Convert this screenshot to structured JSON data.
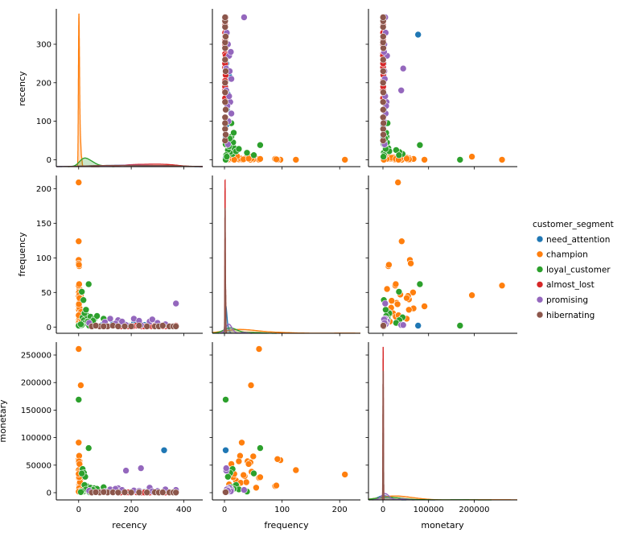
{
  "chart_data": {
    "type": "scatter",
    "kind": "pairplot",
    "diag_kind": "kde",
    "variables": [
      "recency",
      "frequency",
      "monetary"
    ],
    "hue": "customer_segment",
    "legend": {
      "title": "customer_segment",
      "placement": "right"
    },
    "axes": {
      "recency": {
        "xlim": [
          -85,
          472
        ],
        "ylim": [
          -18,
          392
        ],
        "x_ticks": [
          0,
          200,
          400
        ],
        "y_ticks": [
          0,
          100,
          200,
          300
        ]
      },
      "frequency": {
        "xlim": [
          -21,
          236
        ],
        "ylim": [
          -9,
          219
        ],
        "x_ticks": [
          0,
          100,
          200
        ],
        "y_ticks": [
          0,
          50,
          100,
          150,
          200
        ]
      },
      "monetary": {
        "xlim": [
          -31750,
          294500
        ],
        "ylim": [
          -13160,
          273400
        ],
        "x_ticks": [
          0,
          100000,
          200000
        ],
        "y_ticks": [
          0,
          50000,
          100000,
          150000,
          200000,
          250000
        ]
      }
    },
    "grid": false,
    "point_fields": [
      "recency",
      "frequency",
      "monetary"
    ],
    "segments": [
      {
        "name": "need_attention",
        "color": "#1f77b4",
        "points": [
          [
            325,
            2,
            77000
          ],
          [
            210,
            5,
            2000
          ],
          [
            5,
            2,
            1500
          ],
          [
            90,
            3,
            1200
          ],
          [
            130,
            4,
            2500
          ],
          [
            60,
            2,
            900
          ],
          [
            170,
            6,
            3000
          ],
          [
            250,
            3,
            1800
          ],
          [
            110,
            1,
            600
          ],
          [
            40,
            2,
            800
          ],
          [
            190,
            2,
            1100
          ],
          [
            300,
            4,
            2200
          ],
          [
            218,
            8,
            1400
          ],
          [
            150,
            3,
            700
          ]
        ]
      },
      {
        "name": "champion",
        "color": "#ff7f0e",
        "points": [
          [
            0,
            209,
            33000
          ],
          [
            0,
            124,
            41000
          ],
          [
            8,
            46,
            195000
          ],
          [
            0,
            60,
            261000
          ],
          [
            0,
            30,
            91000
          ],
          [
            0,
            97,
            59000
          ],
          [
            0,
            92,
            61000
          ],
          [
            2,
            88,
            12000
          ],
          [
            1,
            90,
            13000
          ],
          [
            3,
            55,
            9000
          ],
          [
            1,
            50,
            66000
          ],
          [
            2,
            27,
            67000
          ],
          [
            4,
            40,
            57000
          ],
          [
            0,
            45,
            55000
          ],
          [
            5,
            12,
            52000
          ],
          [
            1,
            25,
            57000
          ],
          [
            3,
            47,
            38000
          ],
          [
            2,
            35,
            30000
          ],
          [
            6,
            20,
            22000
          ],
          [
            1,
            15,
            28000
          ],
          [
            0,
            60,
            27000
          ],
          [
            2,
            8,
            15000
          ],
          [
            4,
            18,
            10000
          ],
          [
            3,
            28,
            18000
          ],
          [
            7,
            5,
            6000
          ],
          [
            1,
            10,
            4000
          ],
          [
            0,
            6,
            3000
          ],
          [
            9,
            22,
            12000
          ],
          [
            5,
            38,
            19000
          ],
          [
            2,
            14,
            8000
          ],
          [
            0,
            3,
            2000
          ],
          [
            12,
            9,
            5000
          ],
          [
            1,
            33,
            32000
          ],
          [
            3,
            42,
            52000
          ],
          [
            2,
            62,
            28000
          ],
          [
            0,
            17,
            34000
          ]
        ]
      },
      {
        "name": "loyal_customer",
        "color": "#2ca02c",
        "points": [
          [
            0,
            2,
            169000
          ],
          [
            38,
            62,
            81000
          ],
          [
            15,
            14,
            43000
          ],
          [
            20,
            10,
            36000
          ],
          [
            25,
            6,
            29000
          ],
          [
            12,
            51,
            35000
          ],
          [
            18,
            39,
            2000
          ],
          [
            30,
            17,
            12000
          ],
          [
            45,
            15,
            9000
          ],
          [
            60,
            12,
            8000
          ],
          [
            95,
            12,
            10000
          ],
          [
            22,
            20,
            14000
          ],
          [
            35,
            8,
            4000
          ],
          [
            50,
            5,
            3000
          ],
          [
            28,
            25,
            6000
          ],
          [
            12,
            3,
            2500
          ],
          [
            70,
            16,
            7000
          ],
          [
            40,
            2,
            1500
          ],
          [
            8,
            4,
            1000
          ],
          [
            55,
            9,
            5000
          ]
        ]
      },
      {
        "name": "almost_lost",
        "color": "#d62728",
        "points": [
          [
            160,
            1,
            400
          ],
          [
            180,
            1,
            300
          ],
          [
            200,
            1,
            500
          ],
          [
            220,
            2,
            800
          ],
          [
            240,
            1,
            350
          ],
          [
            260,
            1,
            600
          ],
          [
            275,
            1,
            300
          ],
          [
            290,
            2,
            900
          ],
          [
            310,
            1,
            450
          ],
          [
            330,
            1,
            300
          ],
          [
            350,
            1,
            500
          ],
          [
            365,
            1,
            700
          ],
          [
            370,
            2,
            400
          ],
          [
            205,
            1,
            1100
          ],
          [
            270,
            2,
            250
          ],
          [
            345,
            1,
            200
          ],
          [
            300,
            1,
            350
          ],
          [
            190,
            1,
            600
          ],
          [
            250,
            1,
            400
          ],
          [
            320,
            1,
            550
          ]
        ]
      },
      {
        "name": "promising",
        "color": "#9467bd",
        "points": [
          [
            370,
            34,
            5000
          ],
          [
            180,
            3,
            40000
          ],
          [
            237,
            3,
            44500
          ],
          [
            150,
            10,
            8000
          ],
          [
            120,
            12,
            6000
          ],
          [
            165,
            8,
            5000
          ],
          [
            210,
            12,
            4000
          ],
          [
            270,
            8,
            9000
          ],
          [
            300,
            6,
            3000
          ],
          [
            100,
            7,
            2000
          ],
          [
            140,
            5,
            7000
          ],
          [
            230,
            9,
            3000
          ],
          [
            330,
            4,
            6000
          ],
          [
            280,
            11,
            2500
          ],
          [
            40,
            6,
            3500
          ]
        ]
      },
      {
        "name": "hibernating",
        "color": "#8c564b",
        "points": [
          [
            50,
            1,
            300
          ],
          [
            80,
            1,
            500
          ],
          [
            110,
            1,
            400
          ],
          [
            130,
            2,
            600
          ],
          [
            150,
            1,
            350
          ],
          [
            175,
            1,
            700
          ],
          [
            200,
            1,
            300
          ],
          [
            230,
            2,
            500
          ],
          [
            260,
            1,
            450
          ],
          [
            290,
            1,
            800
          ],
          [
            305,
            1,
            300
          ],
          [
            320,
            2,
            600
          ],
          [
            345,
            1,
            400
          ],
          [
            360,
            1,
            500
          ],
          [
            370,
            1,
            300
          ],
          [
            95,
            1,
            1200
          ],
          [
            65,
            2,
            900
          ]
        ]
      }
    ]
  }
}
